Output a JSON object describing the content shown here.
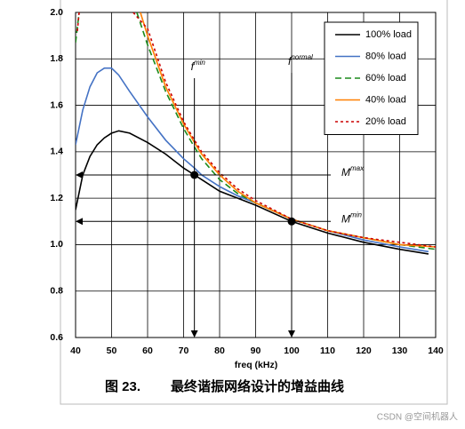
{
  "chart_data": {
    "type": "line",
    "x_label": "freq (kHz)",
    "caption": {
      "number": "图 23.",
      "text": "最终谐振网络设计的增益曲线"
    },
    "watermark": "CSDN @空间机器人",
    "xlim": [
      40,
      140
    ],
    "ylim": [
      0.6,
      2.0
    ],
    "xticks": [
      40,
      50,
      60,
      70,
      80,
      90,
      100,
      110,
      120,
      130,
      140
    ],
    "yticks": [
      0.6,
      0.8,
      {
        "value": 1.0,
        "label": "1.0"
      },
      1.2,
      1.4,
      1.6,
      1.8,
      {
        "value": 2.0,
        "label": "2.0"
      }
    ],
    "grid": true,
    "legend": "top-right",
    "series": [
      {
        "name": "100% load",
        "color": "#000000",
        "style": "solid",
        "x": [
          40,
          42,
          44,
          46,
          48,
          50,
          52,
          55,
          60,
          65,
          70,
          73,
          75,
          80,
          85,
          90,
          100,
          110,
          120,
          130,
          138
        ],
        "values": [
          1.15,
          1.3,
          1.38,
          1.43,
          1.46,
          1.48,
          1.49,
          1.48,
          1.44,
          1.39,
          1.33,
          1.3,
          1.28,
          1.23,
          1.2,
          1.17,
          1.1,
          1.05,
          1.01,
          0.98,
          0.96
        ]
      },
      {
        "name": "80% load",
        "color": "#4472c4",
        "style": "solid",
        "x": [
          40,
          42,
          44,
          46,
          48,
          50,
          52,
          55,
          60,
          65,
          70,
          73,
          75,
          80,
          85,
          90,
          100,
          110,
          120,
          130,
          138
        ],
        "values": [
          1.43,
          1.58,
          1.68,
          1.74,
          1.76,
          1.76,
          1.73,
          1.66,
          1.55,
          1.45,
          1.37,
          1.33,
          1.3,
          1.25,
          1.21,
          1.18,
          1.11,
          1.06,
          1.02,
          0.99,
          0.97
        ]
      },
      {
        "name": "60% load",
        "color": "#1a8a1a",
        "style": "dashed",
        "x": [
          40,
          41,
          50,
          57,
          60,
          65,
          70,
          73,
          75,
          80,
          85,
          90,
          100,
          110,
          120,
          130,
          140
        ],
        "values": [
          1.87,
          2.0,
          null,
          2.0,
          1.86,
          1.66,
          1.5,
          1.42,
          1.37,
          1.28,
          1.22,
          1.18,
          1.11,
          1.06,
          1.03,
          1.0,
          0.98
        ]
      },
      {
        "name": "40% load",
        "color": "#ff7f00",
        "style": "solid",
        "x": [
          58,
          60,
          65,
          70,
          73,
          75,
          80,
          85,
          90,
          100,
          110,
          120,
          130,
          140
        ],
        "values": [
          2.0,
          1.9,
          1.68,
          1.52,
          1.44,
          1.39,
          1.3,
          1.23,
          1.18,
          1.11,
          1.06,
          1.03,
          1.0,
          0.99
        ]
      },
      {
        "name": "20% load",
        "color": "#cc0000",
        "style": "dotted",
        "x": [
          40.5,
          41,
          50,
          56,
          60,
          65,
          70,
          73,
          75,
          80,
          85,
          90,
          100,
          110,
          120,
          130,
          140
        ],
        "values": [
          1.92,
          2.0,
          null,
          2.0,
          1.93,
          1.7,
          1.53,
          1.45,
          1.4,
          1.31,
          1.24,
          1.19,
          1.11,
          1.06,
          1.03,
          1.01,
          0.99
        ]
      }
    ],
    "annotations": [
      {
        "kind": "vline",
        "x": 73,
        "text": "f",
        "sup": "min"
      },
      {
        "kind": "vline",
        "x": 100,
        "text": "f",
        "sup": "normal"
      },
      {
        "kind": "hline",
        "y": 1.3,
        "text": "M",
        "sup": "max"
      },
      {
        "kind": "hline",
        "y": 1.1,
        "text": "M",
        "sup": "min"
      }
    ],
    "points": [
      {
        "x": 73,
        "y": 1.3
      },
      {
        "x": 100,
        "y": 1.1
      }
    ]
  }
}
